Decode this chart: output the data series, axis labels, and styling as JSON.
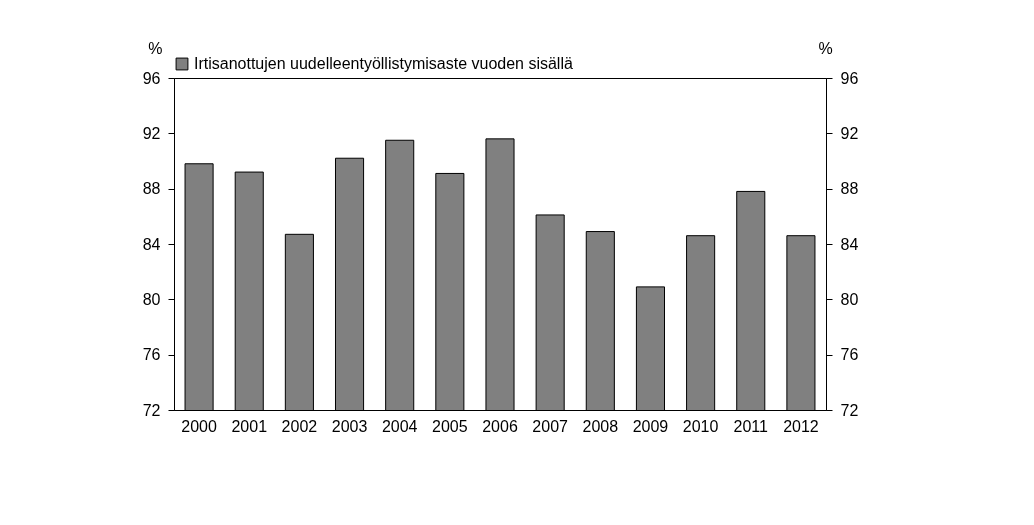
{
  "chart_data": {
    "type": "bar",
    "ylabel": "%",
    "y2label": "%",
    "categories": [
      "2000",
      "2001",
      "2002",
      "2003",
      "2004",
      "2005",
      "2006",
      "2007",
      "2008",
      "2009",
      "2010",
      "2011",
      "2012"
    ],
    "series": [
      {
        "name": "Irtisanottujen uudelleentyöllistymisaste vuoden sisällä",
        "color": "#808080",
        "values": [
          89.8,
          89.2,
          84.7,
          90.2,
          91.5,
          89.1,
          91.6,
          86.1,
          84.9,
          80.9,
          84.6,
          87.8,
          84.6
        ]
      }
    ],
    "ylim": [
      72,
      96
    ],
    "yticks": [
      72,
      76,
      80,
      84,
      88,
      92,
      96
    ],
    "y2lim": [
      72,
      96
    ],
    "y2ticks": [
      72,
      76,
      80,
      84,
      88,
      92,
      96
    ],
    "legend": "top",
    "grid": false
  }
}
